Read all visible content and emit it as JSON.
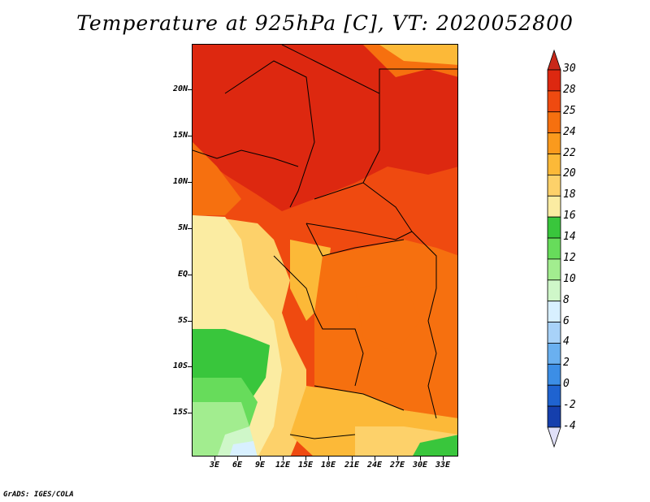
{
  "title": "Temperature at 925hPa [C], VT: 2020052800",
  "credit": "GrADS: IGES/COLA",
  "lat_labels": [
    "20N",
    "15N",
    "10N",
    "5N",
    "EQ",
    "5S",
    "10S",
    "15S"
  ],
  "lon_labels": [
    "3E",
    "6E",
    "9E",
    "12E",
    "15E",
    "18E",
    "21E",
    "24E",
    "27E",
    "30E",
    "33E"
  ],
  "colorbar": {
    "labels": [
      "30",
      "28",
      "25",
      "24",
      "22",
      "20",
      "18",
      "16",
      "14",
      "12",
      "10",
      "8",
      "6",
      "4",
      "2",
      "0",
      "-2",
      "-4"
    ],
    "colors": [
      "#dd2810",
      "#ef4a10",
      "#f6700f",
      "#fa9a1d",
      "#fcb938",
      "#fdd16a",
      "#fbeca2",
      "#39c63c",
      "#67dc5b",
      "#a2ed8f",
      "#cff7c9",
      "#d8f0ff",
      "#a8d2f8",
      "#6ab0f0",
      "#3c8ee6",
      "#1f63d0",
      "#153fad",
      "#0c207e"
    ],
    "over_color": "#c8281a",
    "under_color": "#e0e0f8"
  }
}
